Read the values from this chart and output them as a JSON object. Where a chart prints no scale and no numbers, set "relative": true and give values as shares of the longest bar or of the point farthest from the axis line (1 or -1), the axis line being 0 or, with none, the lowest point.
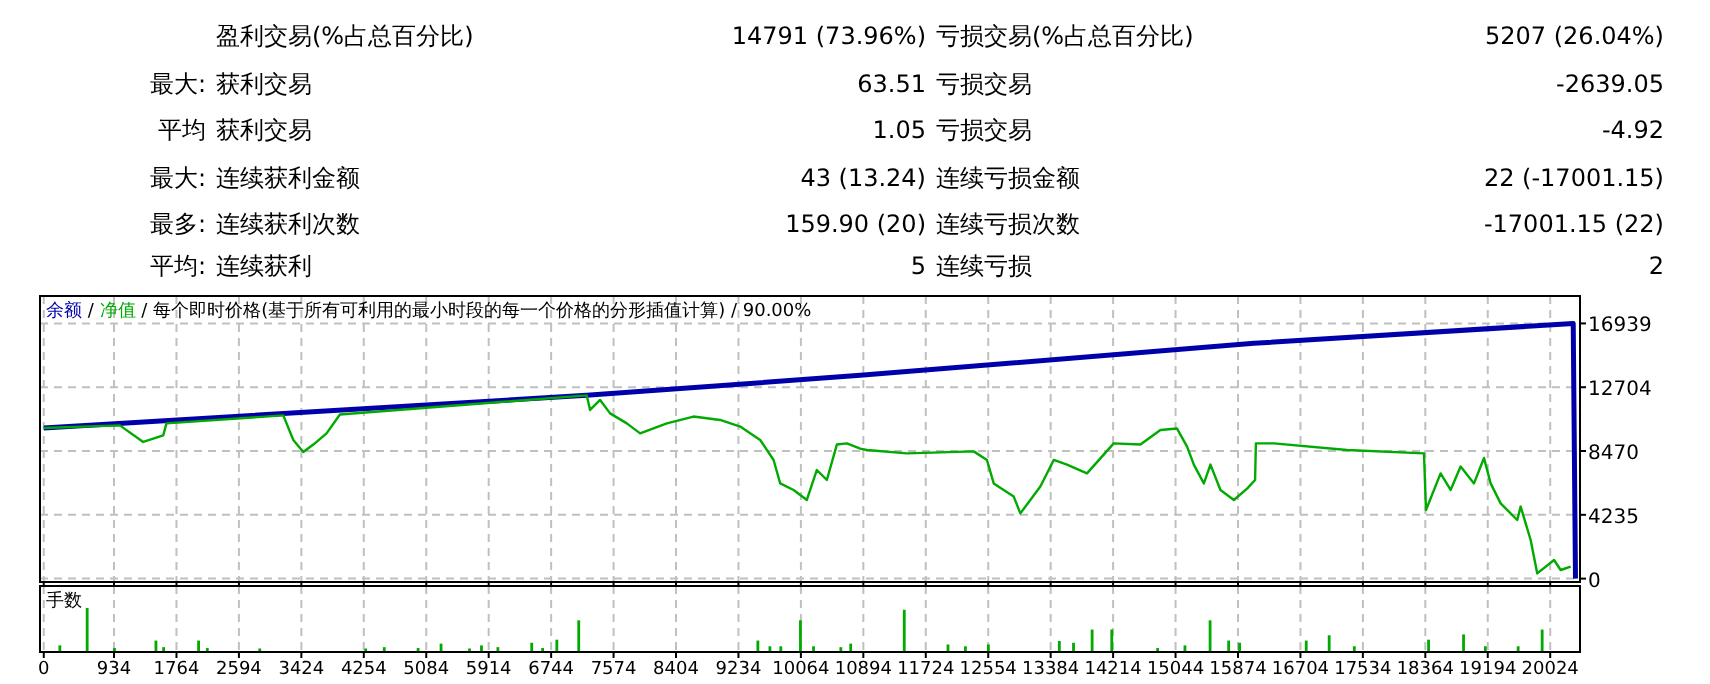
{
  "chart_data": [
    {
      "type": "other",
      "annotations": [
        "盈利交易(%占总百分比)",
        "14791 (73.96%)",
        "亏损交易(%占总百分比)",
        "5207 (26.04%)",
        "最大:",
        "获利交易",
        "63.51",
        "亏损交易",
        "-2639.05",
        "平均",
        "获利交易",
        "1.05",
        "亏损交易",
        "-4.92",
        "最大:",
        "连续获利金额",
        "43 (13.24)",
        "连续亏损金额",
        "22 (-17001.15)",
        "最多:",
        "连续获利次数",
        "159.90 (20)",
        "连续亏损次数",
        "-17001.15 (22)",
        "平均:",
        "连续获利",
        "5",
        "连续亏损",
        "2"
      ]
    },
    {
      "type": "line",
      "annotations": [
        "/"
      ],
      "subtitle": "每个即时价格(基于所有可利用的最小时段的每一个价格的分形插值计算) / 90.00%",
      "legend": "top left",
      "grid": true,
      "tick_labels": "y",
      "xlim": [
        -50,
        20420
      ],
      "ylim": [
        -225,
        18760
      ],
      "xticks": [
        0,
        934,
        1764,
        2594,
        3424,
        4254,
        5084,
        5914,
        6744,
        7574,
        8404,
        9234,
        10064,
        10894,
        11724,
        12554,
        13384,
        14214,
        15044,
        15874,
        16704,
        17534,
        18364,
        19194,
        20024
      ],
      "yticks": [
        0,
        4235,
        8470,
        12704,
        16939
      ],
      "series": [
        {
          "name": "余额",
          "color": "#0000aa",
          "x": [
            0,
            7217,
            10853,
            16085,
            20330,
            20360
          ],
          "values": [
            10000,
            12165,
            13493,
            15617,
            16939,
            0
          ]
        },
        {
          "name": "净值",
          "color": "#00aa00",
          "x": [
            0,
            1011,
            1322,
            1588,
            1631,
            3184,
            3317,
            3450,
            3583,
            3759,
            3937,
            7217,
            7262,
            7395,
            7528,
            7750,
            7927,
            8282,
            8636,
            8991,
            9257,
            9523,
            9701,
            9789,
            9967,
            10143,
            10276,
            10409,
            10542,
            10675,
            10853,
            10941,
            11473,
            12361,
            12537,
            12627,
            12893,
            12981,
            13247,
            13425,
            13601,
            13867,
            14222,
            14577,
            14843,
            15064,
            15197,
            15287,
            15420,
            15508,
            15641,
            15819,
            15995,
            16101,
            16112,
            16351,
            17325,
            18346,
            18373,
            18567,
            18700,
            18833,
            19011,
            19144,
            19232,
            19365,
            19586,
            19631,
            19764,
            19852,
            20075,
            20163,
            20296
          ],
          "values": [
            10000,
            10173,
            9070,
            9510,
            10305,
            10836,
            9203,
            8406,
            8898,
            9641,
            10890,
            12165,
            11195,
            11859,
            10969,
            10305,
            9641,
            10305,
            10757,
            10531,
            10093,
            9203,
            7875,
            6321,
            5883,
            5219,
            7211,
            6547,
            8898,
            8977,
            8632,
            8539,
            8313,
            8446,
            7875,
            6321,
            5445,
            4329,
            6109,
            7875,
            7570,
            6985,
            8977,
            8898,
            9867,
            9960,
            8765,
            7570,
            6321,
            7570,
            5883,
            5219,
            5976,
            6547,
            8977,
            8977,
            8539,
            8313,
            4555,
            6985,
            5883,
            7437,
            6321,
            8008,
            6321,
            4993,
            3891,
            4781,
            2563,
            345,
            1235,
            571,
            797
          ]
        }
      ]
    },
    {
      "type": "bar",
      "title": "手数",
      "relative": true,
      "color": "#00aa00",
      "grid": "x",
      "tick_labels": "x",
      "xlim": [
        -50,
        20420
      ],
      "xticks": [
        0,
        934,
        1764,
        2594,
        3424,
        4254,
        5084,
        5914,
        6744,
        7574,
        8404,
        9234,
        10064,
        10894,
        11724,
        12554,
        13384,
        14214,
        15044,
        15874,
        16704,
        17534,
        18364,
        19194,
        20024
      ],
      "x": [
        214,
        577,
        940,
        1491,
        1593,
        2058,
        2174,
        2871,
        4279,
        4526,
        4976,
        5281,
        5659,
        5818,
        6036,
        6486,
        6631,
        6820,
        7111,
        9492,
        9652,
        9797,
        10058,
        10232,
        10595,
        10726,
        11438,
        12019,
        12251,
        12556,
        13499,
        13688,
        13935,
        14196,
        14806,
        15169,
        15503,
        15750,
        15895,
        16781,
        17086,
        17420,
        18407,
        18872,
        19162,
        19598,
        19917
      ],
      "values": [
        0.15,
        1,
        0.09,
        0.26,
        0.11,
        0.26,
        0.09,
        0.08,
        0.08,
        0.11,
        0.09,
        0.19,
        0.08,
        0.15,
        0.11,
        0.21,
        0.09,
        0.28,
        0.72,
        0.26,
        0.13,
        0.13,
        0.72,
        0.13,
        0.11,
        0.19,
        0.96,
        0.17,
        0.13,
        0.17,
        0.25,
        0.21,
        0.51,
        0.51,
        0.09,
        0.15,
        0.72,
        0.26,
        0.21,
        0.26,
        0.38,
        0.13,
        0.28,
        0.4,
        0.13,
        0.13,
        0.51
      ]
    }
  ]
}
